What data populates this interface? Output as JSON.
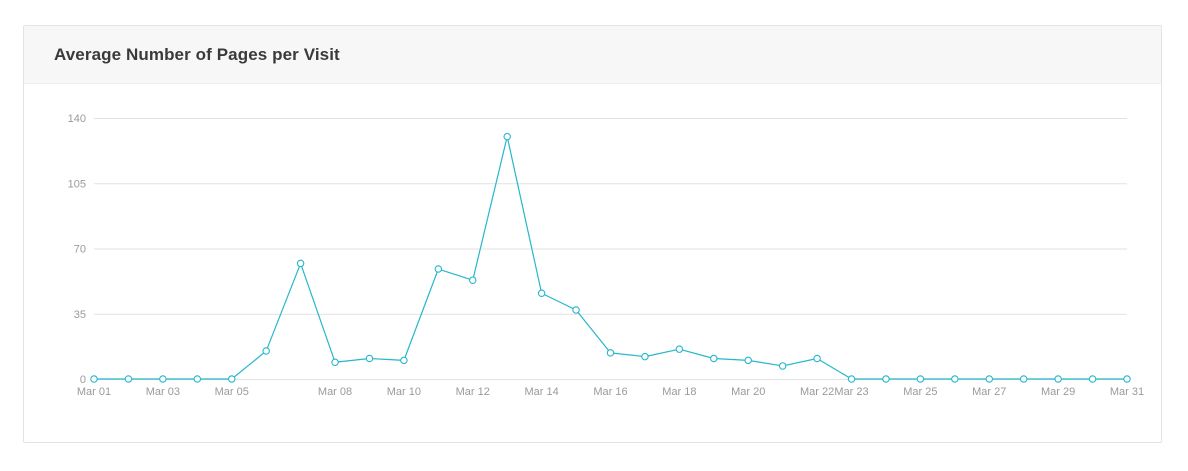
{
  "card": {
    "title": "Average Number of Pages per Visit"
  },
  "chart_data": {
    "type": "line",
    "title": "Average Number of Pages per Visit",
    "xlabel": "",
    "ylabel": "",
    "ylim": [
      0,
      140
    ],
    "yticks": [
      0,
      35,
      70,
      105,
      140
    ],
    "grid": true,
    "x": [
      "Mar 01",
      "Mar 02",
      "Mar 03",
      "Mar 04",
      "Mar 05",
      "Mar 06",
      "Mar 07",
      "Mar 08",
      "Mar 09",
      "Mar 10",
      "Mar 11",
      "Mar 12",
      "Mar 13",
      "Mar 14",
      "Mar 15",
      "Mar 16",
      "Mar 17",
      "Mar 18",
      "Mar 19",
      "Mar 20",
      "Mar 21",
      "Mar 22",
      "Mar 23",
      "Mar 24",
      "Mar 25",
      "Mar 26",
      "Mar 27",
      "Mar 28",
      "Mar 29",
      "Mar 30",
      "Mar 31"
    ],
    "xtick_labels": [
      "Mar 01",
      "Mar 03",
      "Mar 05",
      "Mar 08",
      "Mar 10",
      "Mar 12",
      "Mar 14",
      "Mar 16",
      "Mar 18",
      "Mar 20",
      "Mar 22",
      "Mar 23",
      "Mar 25",
      "Mar 27",
      "Mar 29",
      "Mar 31"
    ],
    "series": [
      {
        "color": "#26b7cc",
        "values": [
          0,
          0,
          0,
          0,
          0,
          15,
          62,
          9,
          11,
          10,
          59,
          53,
          130,
          46,
          37,
          14,
          12,
          16,
          11,
          10,
          7,
          11,
          0,
          0,
          0,
          0,
          0,
          0,
          0,
          0,
          0
        ]
      }
    ]
  },
  "colors": {
    "line": "#26b7cc",
    "grid": "#e2e2e2",
    "tick_text": "#9a9a9a",
    "header_bg": "#f7f7f7",
    "title_text": "#3a3a3a"
  }
}
